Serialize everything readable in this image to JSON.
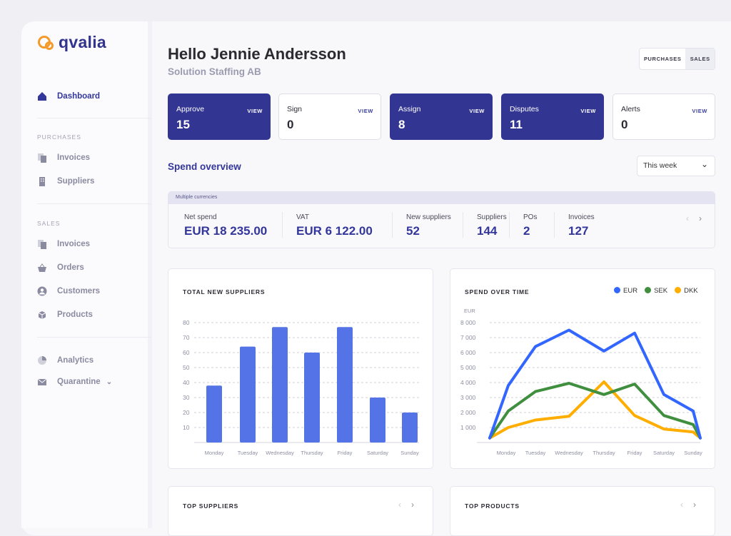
{
  "brand": {
    "name": "qvalia",
    "color": "#f39a2b"
  },
  "sidebar": {
    "dashboard": "Dashboard",
    "purchases_header": "PURCHASES",
    "purchases": [
      {
        "label": "Invoices",
        "icon": "invoice-icon"
      },
      {
        "label": "Suppliers",
        "icon": "building-icon"
      }
    ],
    "sales_header": "SALES",
    "sales": [
      {
        "label": "Invoices",
        "icon": "invoice-icon"
      },
      {
        "label": "Orders",
        "icon": "basket-icon"
      },
      {
        "label": "Customers",
        "icon": "user-icon"
      },
      {
        "label": "Products",
        "icon": "box-icon"
      }
    ],
    "analytics": "Analytics",
    "quarantine": "Quarantine"
  },
  "header": {
    "title": "Hello Jennie Andersson",
    "subtitle": "Solution Staffing AB",
    "toggle": [
      "PURCHASES",
      "SALES"
    ]
  },
  "kpis": [
    {
      "label": "Approve",
      "value": "15",
      "view": "VIEW",
      "dark": true
    },
    {
      "label": "Sign",
      "value": "0",
      "view": "VIEW",
      "dark": false
    },
    {
      "label": "Assign",
      "value": "8",
      "view": "VIEW",
      "dark": true
    },
    {
      "label": "Disputes",
      "value": "11",
      "view": "VIEW",
      "dark": true
    },
    {
      "label": "Alerts",
      "value": "0",
      "view": "VIEW",
      "dark": false
    }
  ],
  "spend": {
    "title": "Spend overview",
    "period": "This week",
    "band": "Multiple currencies",
    "stats": [
      {
        "label": "Net spend",
        "value": "EUR 18 235.00"
      },
      {
        "label": "VAT",
        "value": "EUR 6 122.00"
      },
      {
        "label": "New suppliers",
        "value": "52"
      },
      {
        "label": "Suppliers",
        "value": "144"
      },
      {
        "label": "POs",
        "value": "2"
      },
      {
        "label": "Invoices",
        "value": "127"
      }
    ]
  },
  "colors": {
    "primary": "#323592",
    "bar": "#5373e6",
    "eur": "#3366ff",
    "sek": "#3f8f3f",
    "dkk": "#ffae00"
  },
  "chart_data": [
    {
      "type": "bar",
      "title": "TOTAL NEW SUPPLIERS",
      "categories": [
        "Monday",
        "Tuesday",
        "Wednesday",
        "Thursday",
        "Friday",
        "Saturday",
        "Sunday"
      ],
      "values": [
        38,
        64,
        77,
        60,
        77,
        30,
        20
      ],
      "yticks": [
        "10",
        "20",
        "30",
        "40",
        "50",
        "60",
        "70",
        "80"
      ],
      "ylim": [
        0,
        80
      ],
      "grid": true
    },
    {
      "type": "line",
      "title": "SPEND OVER TIME",
      "ylabel": "EUR",
      "categories": [
        "Monday",
        "Tuesday",
        "Wednesday",
        "Thursday",
        "Friday",
        "Saturday",
        "Sunday"
      ],
      "yticks": [
        "1 000",
        "2 000",
        "3 000",
        "4 000",
        "5 000",
        "6 000",
        "7 000",
        "8 000"
      ],
      "ylim": [
        0,
        8000
      ],
      "legend": "top-right",
      "grid": true,
      "series": [
        {
          "name": "EUR",
          "start": 300,
          "values": [
            3800,
            6400,
            7500,
            6100,
            7300,
            3200,
            2100
          ],
          "end": 300
        },
        {
          "name": "SEK",
          "start": 300,
          "values": [
            2100,
            3400,
            3950,
            3200,
            3900,
            1800,
            1200
          ],
          "end": 300
        },
        {
          "name": "DKK",
          "start": 300,
          "values": [
            1000,
            1500,
            1750,
            4050,
            1800,
            900,
            700
          ],
          "end": 300
        }
      ]
    }
  ],
  "bottom": {
    "top_suppliers": "TOP SUPPLIERS",
    "top_products": "TOP PRODUCTS"
  }
}
